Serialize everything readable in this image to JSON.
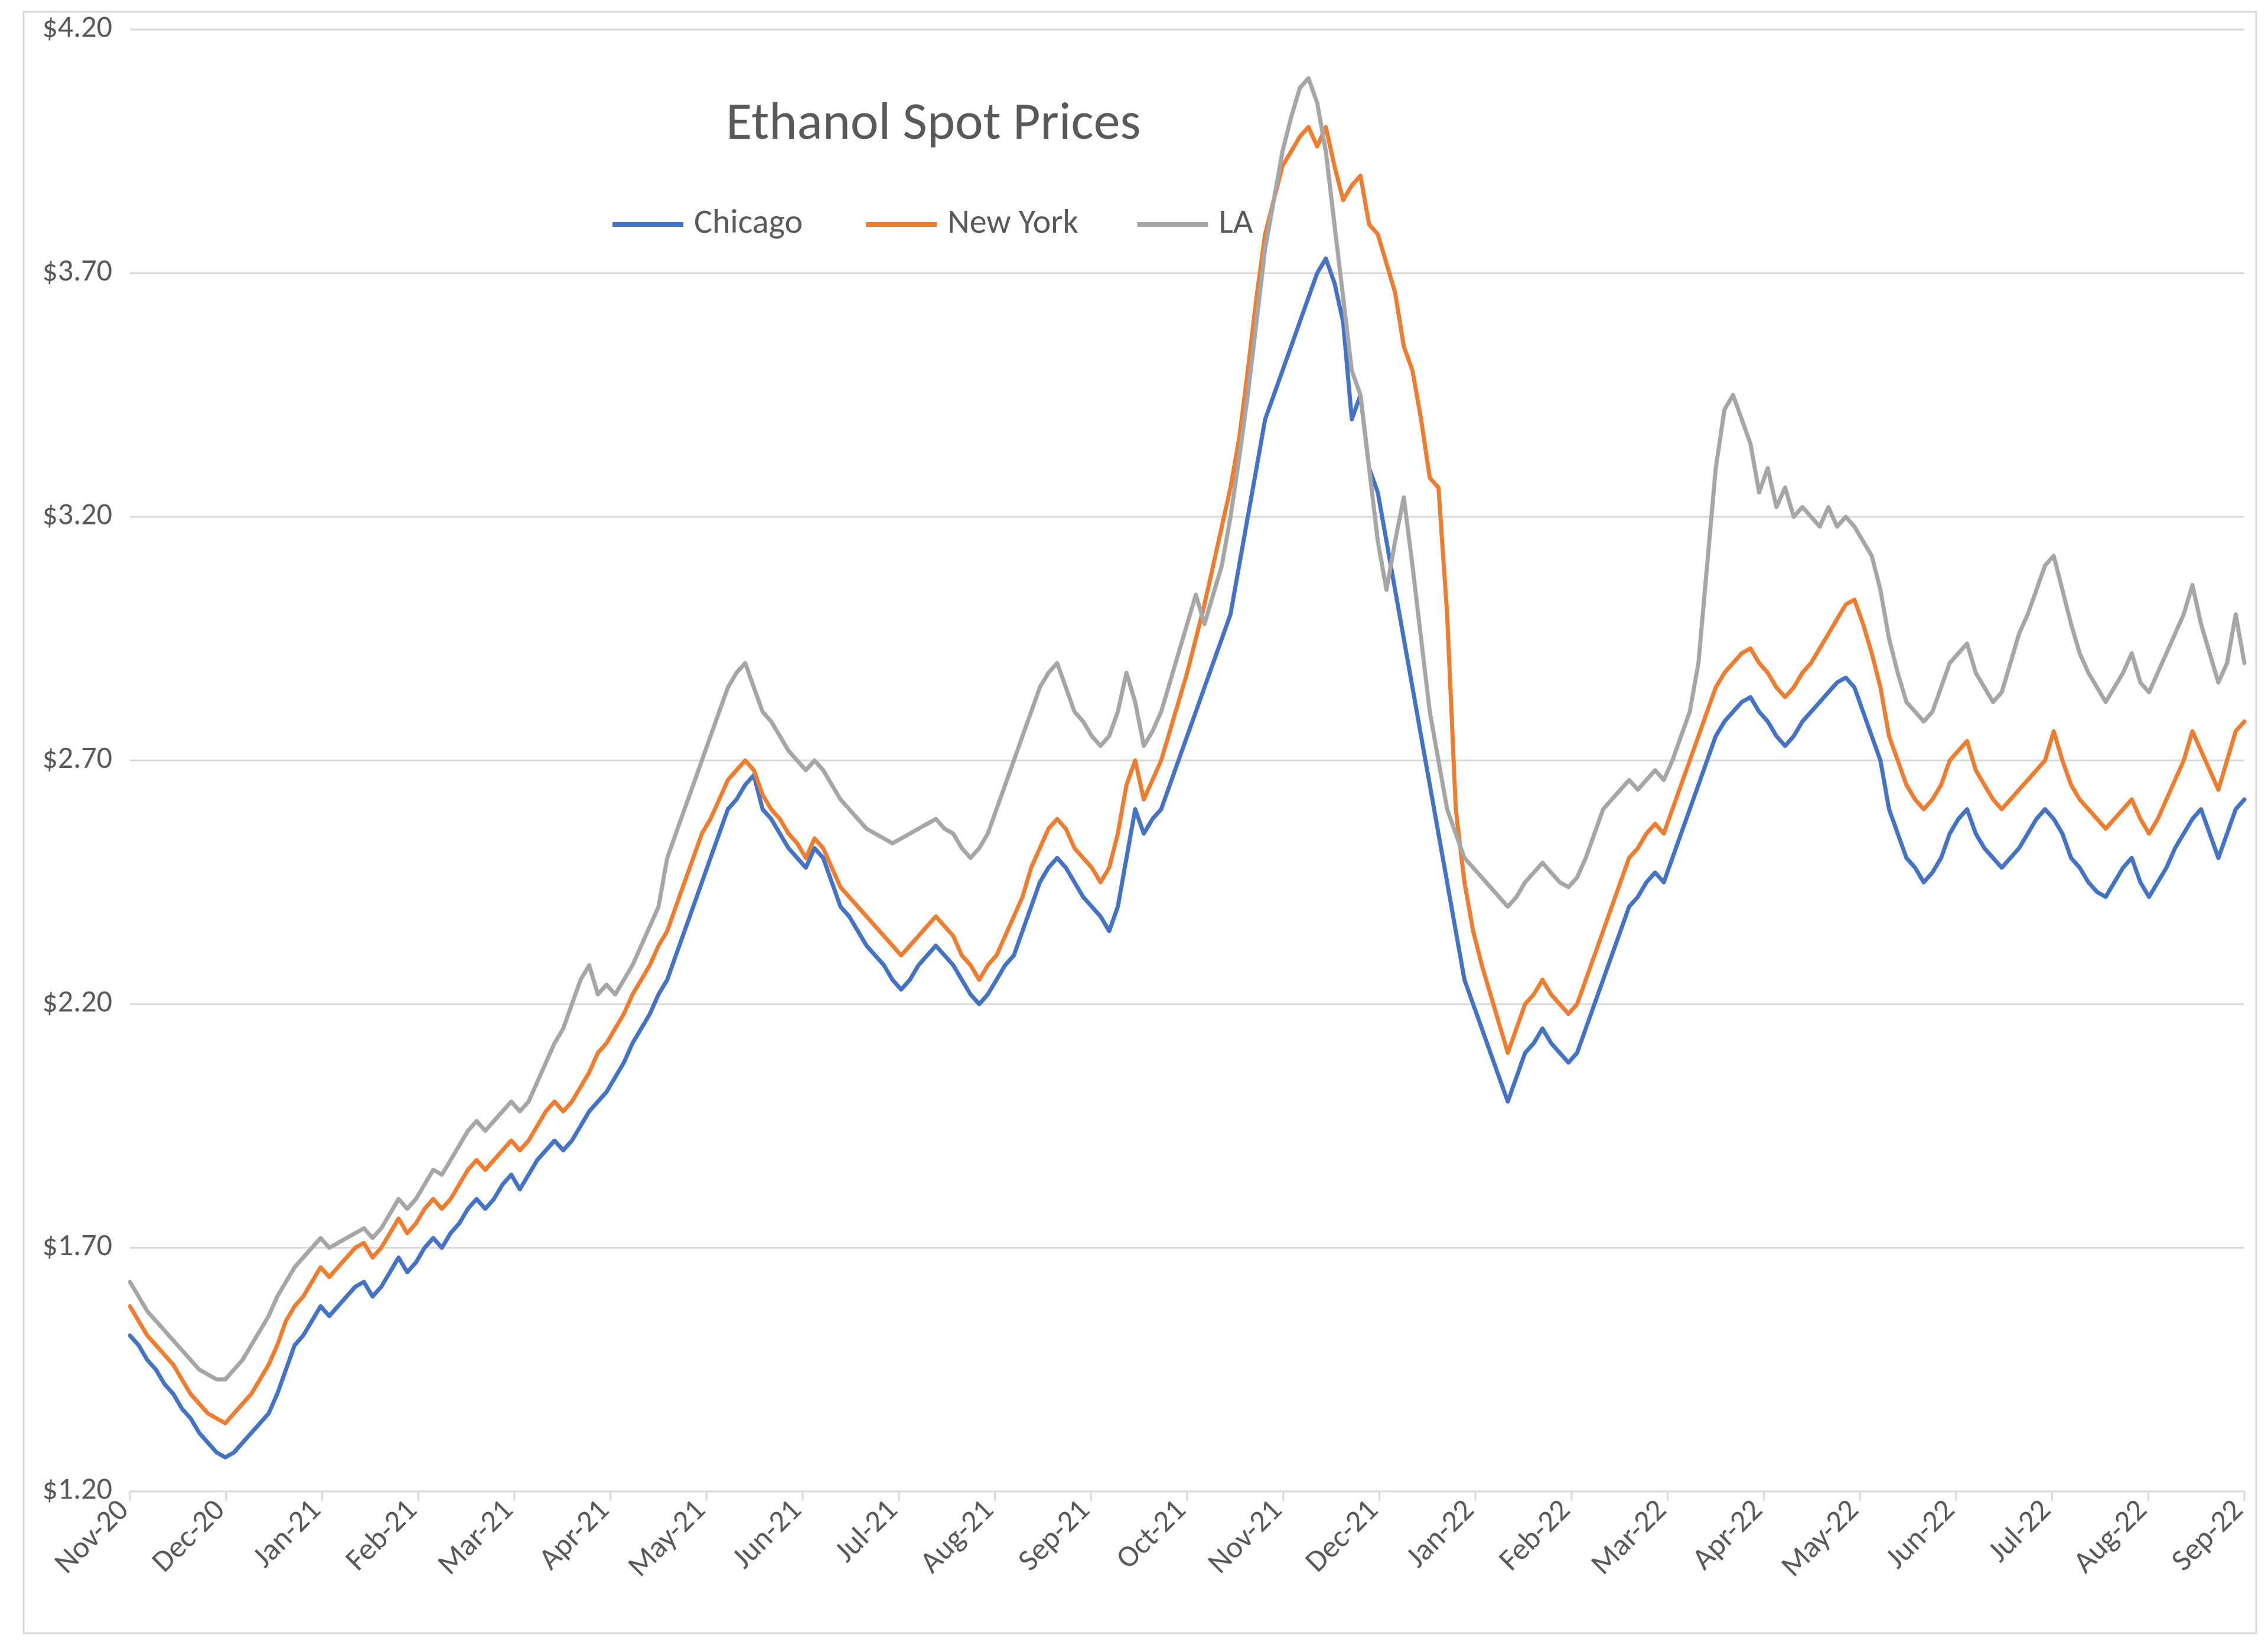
{
  "chart": {
    "type": "line",
    "title": "Ethanol Spot Prices",
    "title_fontsize": 90,
    "title_color": "#595959",
    "background_color": "#ffffff",
    "plot_border_color": "#d9d9d9",
    "plot_border_width": 3,
    "axis_label_fontsize": 52,
    "axis_label_color": "#595959",
    "legend_fontsize": 58,
    "legend_color": "#595959",
    "legend_line_width": 8,
    "legend_line_length": 120,
    "y_axis": {
      "min": 1.2,
      "max": 4.2,
      "tick_step": 0.5,
      "ticks": [
        "$1.20",
        "$1.70",
        "$2.20",
        "$2.70",
        "$3.20",
        "$3.70",
        "$4.20"
      ],
      "gridline_color": "#d9d9d9",
      "gridline_width": 3
    },
    "x_axis": {
      "labels": [
        "Nov-20",
        "Dec-20",
        "Jan-21",
        "Feb-21",
        "Mar-21",
        "Apr-21",
        "May-21",
        "Jun-21",
        "Jul-21",
        "Aug-21",
        "Sep-21",
        "Oct-21",
        "Nov-21",
        "Dec-21",
        "Jan-22",
        "Feb-22",
        "Mar-22",
        "Apr-22",
        "May-22",
        "Jun-22",
        "Jul-22",
        "Aug-22",
        "Sep-22"
      ],
      "label_rotation_deg": -45
    },
    "line_width": 7,
    "series": [
      {
        "name": "Chicago",
        "color": "#4472c4",
        "values": [
          1.52,
          1.5,
          1.47,
          1.45,
          1.42,
          1.4,
          1.37,
          1.35,
          1.32,
          1.3,
          1.28,
          1.27,
          1.28,
          1.3,
          1.32,
          1.34,
          1.36,
          1.4,
          1.45,
          1.5,
          1.52,
          1.55,
          1.58,
          1.56,
          1.58,
          1.6,
          1.62,
          1.63,
          1.6,
          1.62,
          1.65,
          1.68,
          1.65,
          1.67,
          1.7,
          1.72,
          1.7,
          1.73,
          1.75,
          1.78,
          1.8,
          1.78,
          1.8,
          1.83,
          1.85,
          1.82,
          1.85,
          1.88,
          1.9,
          1.92,
          1.9,
          1.92,
          1.95,
          1.98,
          2.0,
          2.02,
          2.05,
          2.08,
          2.12,
          2.15,
          2.18,
          2.22,
          2.25,
          2.3,
          2.35,
          2.4,
          2.45,
          2.5,
          2.55,
          2.6,
          2.62,
          2.65,
          2.67,
          2.6,
          2.58,
          2.55,
          2.52,
          2.5,
          2.48,
          2.52,
          2.5,
          2.45,
          2.4,
          2.38,
          2.35,
          2.32,
          2.3,
          2.28,
          2.25,
          2.23,
          2.25,
          2.28,
          2.3,
          2.32,
          2.3,
          2.28,
          2.25,
          2.22,
          2.2,
          2.22,
          2.25,
          2.28,
          2.3,
          2.35,
          2.4,
          2.45,
          2.48,
          2.5,
          2.48,
          2.45,
          2.42,
          2.4,
          2.38,
          2.35,
          2.4,
          2.5,
          2.6,
          2.55,
          2.58,
          2.6,
          2.65,
          2.7,
          2.75,
          2.8,
          2.85,
          2.9,
          2.95,
          3.0,
          3.1,
          3.2,
          3.3,
          3.4,
          3.45,
          3.5,
          3.55,
          3.6,
          3.65,
          3.7,
          3.73,
          3.68,
          3.6,
          3.4,
          3.45,
          3.3,
          3.25,
          3.15,
          3.05,
          2.95,
          2.85,
          2.75,
          2.65,
          2.55,
          2.45,
          2.35,
          2.25,
          2.2,
          2.15,
          2.1,
          2.05,
          2.0,
          2.05,
          2.1,
          2.12,
          2.15,
          2.12,
          2.1,
          2.08,
          2.1,
          2.15,
          2.2,
          2.25,
          2.3,
          2.35,
          2.4,
          2.42,
          2.45,
          2.47,
          2.45,
          2.5,
          2.55,
          2.6,
          2.65,
          2.7,
          2.75,
          2.78,
          2.8,
          2.82,
          2.83,
          2.8,
          2.78,
          2.75,
          2.73,
          2.75,
          2.78,
          2.8,
          2.82,
          2.84,
          2.86,
          2.87,
          2.85,
          2.8,
          2.75,
          2.7,
          2.6,
          2.55,
          2.5,
          2.48,
          2.45,
          2.47,
          2.5,
          2.55,
          2.58,
          2.6,
          2.55,
          2.52,
          2.5,
          2.48,
          2.5,
          2.52,
          2.55,
          2.58,
          2.6,
          2.58,
          2.55,
          2.5,
          2.48,
          2.45,
          2.43,
          2.42,
          2.45,
          2.48,
          2.5,
          2.45,
          2.42,
          2.45,
          2.48,
          2.52,
          2.55,
          2.58,
          2.6,
          2.55,
          2.5,
          2.55,
          2.6,
          2.62
        ]
      },
      {
        "name": "New York",
        "color": "#ed7d31",
        "values": [
          1.58,
          1.55,
          1.52,
          1.5,
          1.48,
          1.46,
          1.43,
          1.4,
          1.38,
          1.36,
          1.35,
          1.34,
          1.36,
          1.38,
          1.4,
          1.43,
          1.46,
          1.5,
          1.55,
          1.58,
          1.6,
          1.63,
          1.66,
          1.64,
          1.66,
          1.68,
          1.7,
          1.71,
          1.68,
          1.7,
          1.73,
          1.76,
          1.73,
          1.75,
          1.78,
          1.8,
          1.78,
          1.8,
          1.83,
          1.86,
          1.88,
          1.86,
          1.88,
          1.9,
          1.92,
          1.9,
          1.92,
          1.95,
          1.98,
          2.0,
          1.98,
          2.0,
          2.03,
          2.06,
          2.1,
          2.12,
          2.15,
          2.18,
          2.22,
          2.25,
          2.28,
          2.32,
          2.35,
          2.4,
          2.45,
          2.5,
          2.55,
          2.58,
          2.62,
          2.66,
          2.68,
          2.7,
          2.68,
          2.63,
          2.6,
          2.58,
          2.55,
          2.53,
          2.5,
          2.54,
          2.52,
          2.48,
          2.44,
          2.42,
          2.4,
          2.38,
          2.36,
          2.34,
          2.32,
          2.3,
          2.32,
          2.34,
          2.36,
          2.38,
          2.36,
          2.34,
          2.3,
          2.28,
          2.25,
          2.28,
          2.3,
          2.34,
          2.38,
          2.42,
          2.48,
          2.52,
          2.56,
          2.58,
          2.56,
          2.52,
          2.5,
          2.48,
          2.45,
          2.48,
          2.55,
          2.65,
          2.7,
          2.62,
          2.66,
          2.7,
          2.76,
          2.82,
          2.88,
          2.95,
          3.02,
          3.1,
          3.18,
          3.26,
          3.36,
          3.5,
          3.65,
          3.78,
          3.85,
          3.92,
          3.95,
          3.98,
          4.0,
          3.96,
          4.0,
          3.92,
          3.85,
          3.88,
          3.9,
          3.8,
          3.78,
          3.72,
          3.66,
          3.55,
          3.5,
          3.4,
          3.28,
          3.26,
          3.0,
          2.6,
          2.45,
          2.35,
          2.28,
          2.22,
          2.16,
          2.1,
          2.15,
          2.2,
          2.22,
          2.25,
          2.22,
          2.2,
          2.18,
          2.2,
          2.25,
          2.3,
          2.35,
          2.4,
          2.45,
          2.5,
          2.52,
          2.55,
          2.57,
          2.55,
          2.6,
          2.65,
          2.7,
          2.75,
          2.8,
          2.85,
          2.88,
          2.9,
          2.92,
          2.93,
          2.9,
          2.88,
          2.85,
          2.83,
          2.85,
          2.88,
          2.9,
          2.93,
          2.96,
          2.99,
          3.02,
          3.03,
          2.98,
          2.92,
          2.85,
          2.75,
          2.7,
          2.65,
          2.62,
          2.6,
          2.62,
          2.65,
          2.7,
          2.72,
          2.74,
          2.68,
          2.65,
          2.62,
          2.6,
          2.62,
          2.64,
          2.66,
          2.68,
          2.7,
          2.76,
          2.7,
          2.65,
          2.62,
          2.6,
          2.58,
          2.56,
          2.58,
          2.6,
          2.62,
          2.58,
          2.55,
          2.58,
          2.62,
          2.66,
          2.7,
          2.76,
          2.72,
          2.68,
          2.64,
          2.7,
          2.76,
          2.78
        ]
      },
      {
        "name": "LA",
        "color": "#a6a6a6",
        "values": [
          1.63,
          1.6,
          1.57,
          1.55,
          1.53,
          1.51,
          1.49,
          1.47,
          1.45,
          1.44,
          1.43,
          1.43,
          1.45,
          1.47,
          1.5,
          1.53,
          1.56,
          1.6,
          1.63,
          1.66,
          1.68,
          1.7,
          1.72,
          1.7,
          1.71,
          1.72,
          1.73,
          1.74,
          1.72,
          1.74,
          1.77,
          1.8,
          1.78,
          1.8,
          1.83,
          1.86,
          1.85,
          1.88,
          1.91,
          1.94,
          1.96,
          1.94,
          1.96,
          1.98,
          2.0,
          1.98,
          2.0,
          2.04,
          2.08,
          2.12,
          2.15,
          2.2,
          2.25,
          2.28,
          2.22,
          2.24,
          2.22,
          2.25,
          2.28,
          2.32,
          2.36,
          2.4,
          2.5,
          2.55,
          2.6,
          2.65,
          2.7,
          2.75,
          2.8,
          2.85,
          2.88,
          2.9,
          2.85,
          2.8,
          2.78,
          2.75,
          2.72,
          2.7,
          2.68,
          2.7,
          2.68,
          2.65,
          2.62,
          2.6,
          2.58,
          2.56,
          2.55,
          2.54,
          2.53,
          2.54,
          2.55,
          2.56,
          2.57,
          2.58,
          2.56,
          2.55,
          2.52,
          2.5,
          2.52,
          2.55,
          2.6,
          2.65,
          2.7,
          2.75,
          2.8,
          2.85,
          2.88,
          2.9,
          2.85,
          2.8,
          2.78,
          2.75,
          2.73,
          2.75,
          2.8,
          2.88,
          2.82,
          2.73,
          2.76,
          2.8,
          2.86,
          2.92,
          2.98,
          3.04,
          2.98,
          3.04,
          3.1,
          3.2,
          3.32,
          3.45,
          3.6,
          3.75,
          3.85,
          3.95,
          4.02,
          4.08,
          4.1,
          4.05,
          3.95,
          3.8,
          3.65,
          3.5,
          3.45,
          3.3,
          3.15,
          3.05,
          3.15,
          3.24,
          3.1,
          2.95,
          2.8,
          2.7,
          2.6,
          2.55,
          2.5,
          2.48,
          2.46,
          2.44,
          2.42,
          2.4,
          2.42,
          2.45,
          2.47,
          2.49,
          2.47,
          2.45,
          2.44,
          2.46,
          2.5,
          2.55,
          2.6,
          2.62,
          2.64,
          2.66,
          2.64,
          2.66,
          2.68,
          2.66,
          2.7,
          2.75,
          2.8,
          2.9,
          3.1,
          3.3,
          3.42,
          3.45,
          3.4,
          3.35,
          3.25,
          3.3,
          3.22,
          3.26,
          3.2,
          3.22,
          3.2,
          3.18,
          3.22,
          3.18,
          3.2,
          3.18,
          3.15,
          3.12,
          3.05,
          2.95,
          2.88,
          2.82,
          2.8,
          2.78,
          2.8,
          2.85,
          2.9,
          2.92,
          2.94,
          2.88,
          2.85,
          2.82,
          2.84,
          2.9,
          2.96,
          3.0,
          3.05,
          3.1,
          3.12,
          3.05,
          2.98,
          2.92,
          2.88,
          2.85,
          2.82,
          2.85,
          2.88,
          2.92,
          2.86,
          2.84,
          2.88,
          2.92,
          2.96,
          3.0,
          3.06,
          2.98,
          2.92,
          2.86,
          2.9,
          3.0,
          2.9
        ]
      }
    ]
  }
}
